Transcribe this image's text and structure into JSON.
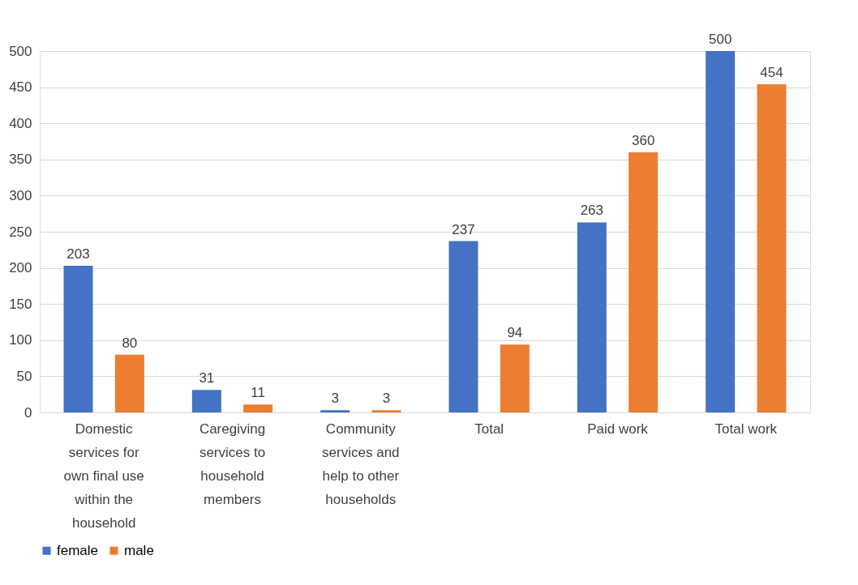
{
  "chart_data": {
    "type": "bar",
    "categories": [
      "Domestic services for own final use within the household",
      "Caregiving services to household members",
      "Community services and help to other households",
      "Total",
      "Paid work",
      "Total work"
    ],
    "series": [
      {
        "name": "female",
        "color": "#4472c4",
        "values": [
          203,
          31,
          3,
          237,
          263,
          500
        ]
      },
      {
        "name": "male",
        "color": "#ed7d31",
        "values": [
          80,
          11,
          3,
          94,
          360,
          454
        ]
      }
    ],
    "ylim": [
      0,
      500
    ],
    "yticks": [
      0,
      50,
      100,
      150,
      200,
      250,
      300,
      350,
      400,
      450,
      500
    ],
    "grid": "y",
    "legend": "bottom",
    "data_labels": true
  }
}
